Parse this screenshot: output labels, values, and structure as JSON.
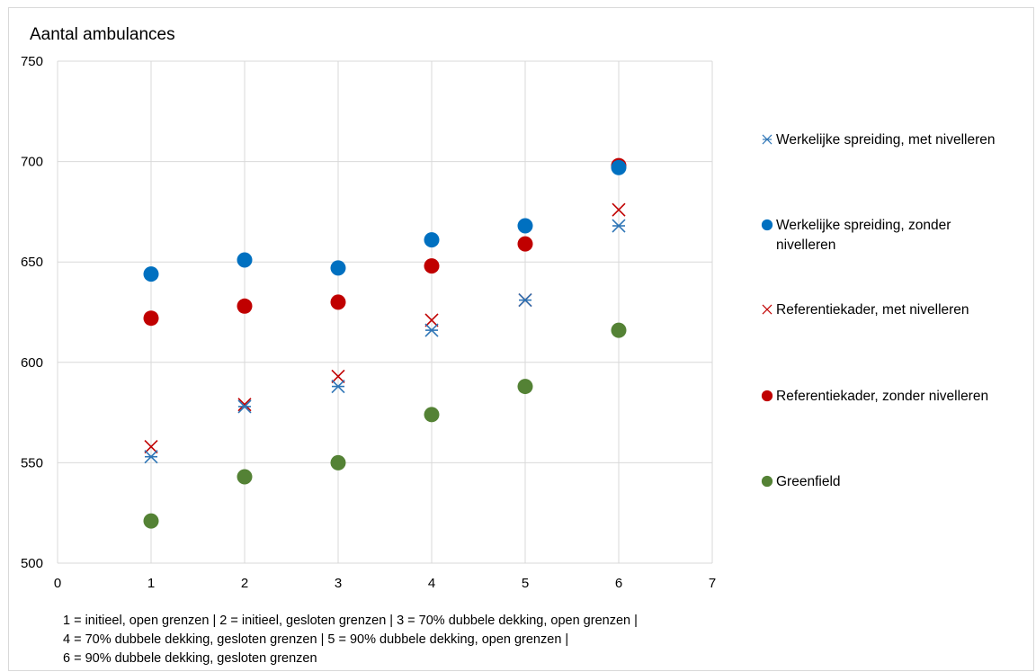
{
  "chart_data": {
    "type": "scatter",
    "title": "",
    "ylabel": "Aantal ambulances",
    "xlabel": "",
    "xlim": [
      0,
      7
    ],
    "ylim": [
      500,
      750
    ],
    "xticks": [
      0,
      1,
      2,
      3,
      4,
      5,
      6,
      7
    ],
    "yticks": [
      500,
      550,
      600,
      650,
      700,
      750
    ],
    "grid": true,
    "legend_position": "right",
    "series": [
      {
        "name": "Werkelijke spreiding, met nivelleren",
        "marker": "asterisk",
        "color": "#2e75b6",
        "x": [
          1,
          2,
          3,
          4,
          5,
          6
        ],
        "y": [
          553,
          578,
          588,
          616,
          631,
          668
        ]
      },
      {
        "name": "Werkelijke spreiding, zonder nivelleren",
        "marker": "circle",
        "color": "#0070c0",
        "x": [
          1,
          2,
          3,
          4,
          5,
          6
        ],
        "y": [
          644,
          651,
          647,
          661,
          668,
          697
        ]
      },
      {
        "name": "Referentiekader, met nivelleren",
        "marker": "x",
        "color": "#c00000",
        "x": [
          1,
          2,
          3,
          4,
          5,
          6
        ],
        "y": [
          558,
          579,
          593,
          621,
          631,
          676
        ]
      },
      {
        "name": "Referentiekader, zonder nivelleren",
        "marker": "circle",
        "color": "#c00000",
        "x": [
          1,
          2,
          3,
          4,
          5,
          6
        ],
        "y": [
          622,
          628,
          630,
          648,
          659,
          698
        ]
      },
      {
        "name": "Greenfield",
        "marker": "circle",
        "color": "#548235",
        "x": [
          1,
          2,
          3,
          4,
          5,
          6
        ],
        "y": [
          521,
          543,
          550,
          574,
          588,
          616
        ]
      }
    ],
    "legend_labels": [
      [
        "Werkelijke spreiding, met nivelleren"
      ],
      [
        "Werkelijke spreiding, zonder",
        "nivelleren"
      ],
      [
        "Referentiekader, met nivelleren"
      ],
      [
        "Referentiekader, zonder nivelleren"
      ],
      [
        "Greenfield"
      ]
    ],
    "footnote": [
      "1 = initieel, open grenzen  |  2 =  initieel, gesloten grenzen |  3 = 70% dubbele dekking, open grenzen |",
      "4 = 70% dubbele dekking, gesloten grenzen | 5 = 90% dubbele dekking, open grenzen |",
      "6 = 90% dubbele dekking, gesloten grenzen"
    ]
  }
}
